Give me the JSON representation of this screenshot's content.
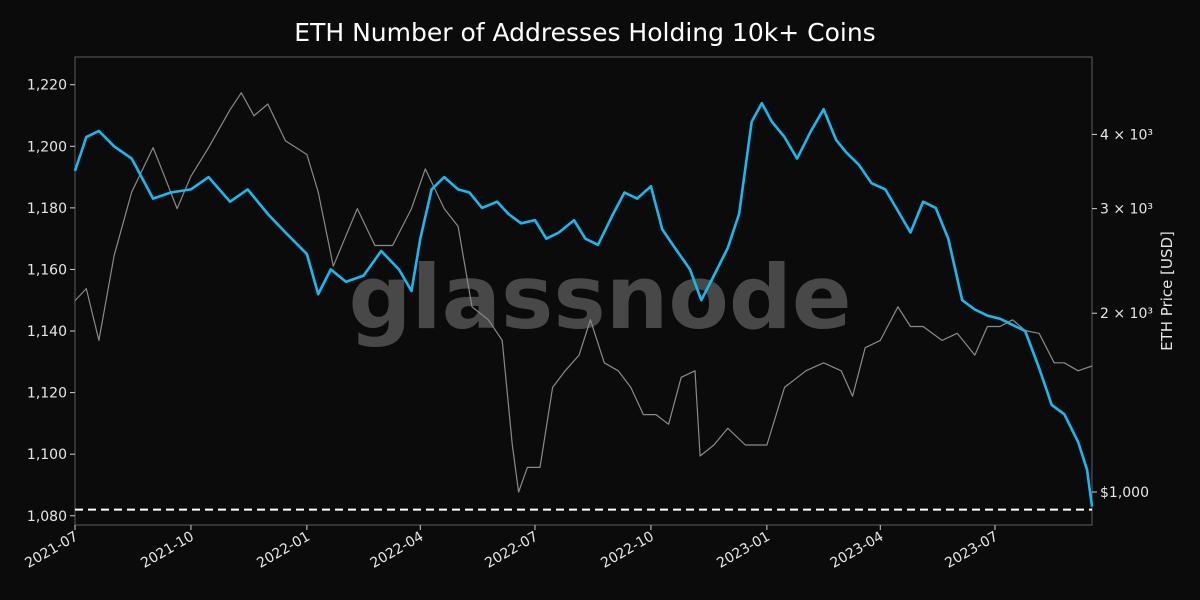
{
  "chart_data": {
    "type": "line",
    "title": "ETH Number of Addresses Holding 10k+ Coins",
    "watermark": "glassnode",
    "y_left": {
      "ylim": [
        1077,
        1229
      ],
      "ticks": [
        1080,
        1100,
        1120,
        1140,
        1160,
        1180,
        1200,
        1220
      ],
      "tick_labels": [
        "1,080",
        "1,100",
        "1,120",
        "1,140",
        "1,160",
        "1,180",
        "1,200",
        "1,220"
      ]
    },
    "y_right": {
      "label": "ETH Price [USD]",
      "scale": "log",
      "ylim": [
        880,
        5400
      ],
      "ticks": [
        1000,
        2000,
        3000,
        4000
      ],
      "tick_labels": [
        "$1,000",
        "2 × 10³",
        "3 × 10³",
        "4 × 10³"
      ]
    },
    "x_axis": {
      "range": [
        "2021-07-01",
        "2023-09-16"
      ],
      "ticks": [
        "2021-07-01",
        "2021-10-01",
        "2022-01-01",
        "2022-04-01",
        "2022-07-01",
        "2022-10-01",
        "2023-01-01",
        "2023-04-01",
        "2023-07-01"
      ],
      "tick_labels": [
        "2021-07",
        "2021-10",
        "2022-01",
        "2022-04",
        "2022-07",
        "2022-10",
        "2023-01",
        "2023-04",
        "2023-07"
      ]
    },
    "reference_line": {
      "value": 1082,
      "style": "dashed",
      "color": "#ffffff"
    },
    "grid": false,
    "series": [
      {
        "axis": "left",
        "color": "#1ab8ef",
        "x": [
          "2021-07-01",
          "2021-07-10",
          "2021-07-20",
          "2021-08-01",
          "2021-08-15",
          "2021-09-01",
          "2021-09-15",
          "2021-10-01",
          "2021-10-15",
          "2021-11-01",
          "2021-11-15",
          "2021-12-01",
          "2021-12-15",
          "2022-01-01",
          "2022-01-10",
          "2022-01-20",
          "2022-02-01",
          "2022-02-15",
          "2022-03-01",
          "2022-03-15",
          "2022-03-25",
          "2022-04-01",
          "2022-04-10",
          "2022-04-20",
          "2022-05-01",
          "2022-05-10",
          "2022-05-20",
          "2022-06-01",
          "2022-06-10",
          "2022-06-20",
          "2022-07-01",
          "2022-07-10",
          "2022-07-20",
          "2022-08-01",
          "2022-08-10",
          "2022-08-20",
          "2022-09-01",
          "2022-09-10",
          "2022-09-20",
          "2022-10-01",
          "2022-10-10",
          "2022-10-20",
          "2022-11-01",
          "2022-11-10",
          "2022-11-20",
          "2022-12-01",
          "2022-12-10",
          "2022-12-20",
          "2022-12-28",
          "2023-01-05",
          "2023-01-15",
          "2023-01-25",
          "2023-02-05",
          "2023-02-15",
          "2023-02-25",
          "2023-03-05",
          "2023-03-15",
          "2023-03-25",
          "2023-04-05",
          "2023-04-15",
          "2023-04-25",
          "2023-05-05",
          "2023-05-15",
          "2023-05-25",
          "2023-06-05",
          "2023-06-15",
          "2023-06-25",
          "2023-07-05",
          "2023-07-15",
          "2023-07-25",
          "2023-08-05",
          "2023-08-15",
          "2023-08-25",
          "2023-09-05",
          "2023-09-12",
          "2023-09-16"
        ],
        "values": [
          1192,
          1203,
          1205,
          1200,
          1196,
          1183,
          1185,
          1186,
          1190,
          1182,
          1186,
          1178,
          1172,
          1165,
          1152,
          1160,
          1156,
          1158,
          1166,
          1160,
          1153,
          1170,
          1186,
          1190,
          1186,
          1185,
          1180,
          1182,
          1178,
          1175,
          1176,
          1170,
          1172,
          1176,
          1170,
          1168,
          1178,
          1185,
          1183,
          1187,
          1173,
          1167,
          1160,
          1150,
          1158,
          1167,
          1178,
          1208,
          1214,
          1208,
          1203,
          1196,
          1205,
          1212,
          1202,
          1198,
          1194,
          1188,
          1186,
          1179,
          1172,
          1182,
          1180,
          1170,
          1150,
          1147,
          1145,
          1144,
          1142,
          1140,
          1128,
          1116,
          1113,
          1104,
          1095,
          1083
        ]
      },
      {
        "axis": "right",
        "color": "#8a8a8a",
        "x": [
          "2021-07-01",
          "2021-07-10",
          "2021-07-20",
          "2021-08-01",
          "2021-08-15",
          "2021-09-01",
          "2021-09-10",
          "2021-09-20",
          "2021-10-01",
          "2021-10-15",
          "2021-11-01",
          "2021-11-10",
          "2021-11-20",
          "2021-12-01",
          "2021-12-15",
          "2022-01-01",
          "2022-01-10",
          "2022-01-22",
          "2022-02-01",
          "2022-02-10",
          "2022-02-24",
          "2022-03-10",
          "2022-03-25",
          "2022-04-05",
          "2022-04-20",
          "2022-05-01",
          "2022-05-12",
          "2022-05-25",
          "2022-06-05",
          "2022-06-13",
          "2022-06-18",
          "2022-06-25",
          "2022-07-05",
          "2022-07-15",
          "2022-07-25",
          "2022-08-05",
          "2022-08-14",
          "2022-08-25",
          "2022-09-05",
          "2022-09-15",
          "2022-09-25",
          "2022-10-05",
          "2022-10-15",
          "2022-10-25",
          "2022-11-05",
          "2022-11-09",
          "2022-11-20",
          "2022-12-01",
          "2022-12-15",
          "2023-01-01",
          "2023-01-15",
          "2023-02-01",
          "2023-02-15",
          "2023-03-01",
          "2023-03-10",
          "2023-03-20",
          "2023-04-01",
          "2023-04-15",
          "2023-04-25",
          "2023-05-05",
          "2023-05-20",
          "2023-06-01",
          "2023-06-15",
          "2023-06-25",
          "2023-07-05",
          "2023-07-15",
          "2023-07-25",
          "2023-08-05",
          "2023-08-17",
          "2023-08-25",
          "2023-09-05",
          "2023-09-16"
        ],
        "values": [
          2100,
          2200,
          1800,
          2500,
          3200,
          3800,
          3400,
          3000,
          3400,
          3800,
          4400,
          4700,
          4300,
          4500,
          3900,
          3700,
          3200,
          2400,
          2700,
          3000,
          2600,
          2600,
          3000,
          3500,
          3000,
          2800,
          2050,
          1950,
          1800,
          1200,
          1000,
          1100,
          1100,
          1500,
          1600,
          1700,
          1950,
          1650,
          1600,
          1500,
          1350,
          1350,
          1300,
          1560,
          1600,
          1150,
          1200,
          1280,
          1200,
          1200,
          1500,
          1600,
          1650,
          1600,
          1450,
          1750,
          1800,
          2050,
          1900,
          1900,
          1800,
          1850,
          1700,
          1900,
          1900,
          1950,
          1870,
          1850,
          1650,
          1650,
          1600,
          1630
        ]
      }
    ]
  }
}
